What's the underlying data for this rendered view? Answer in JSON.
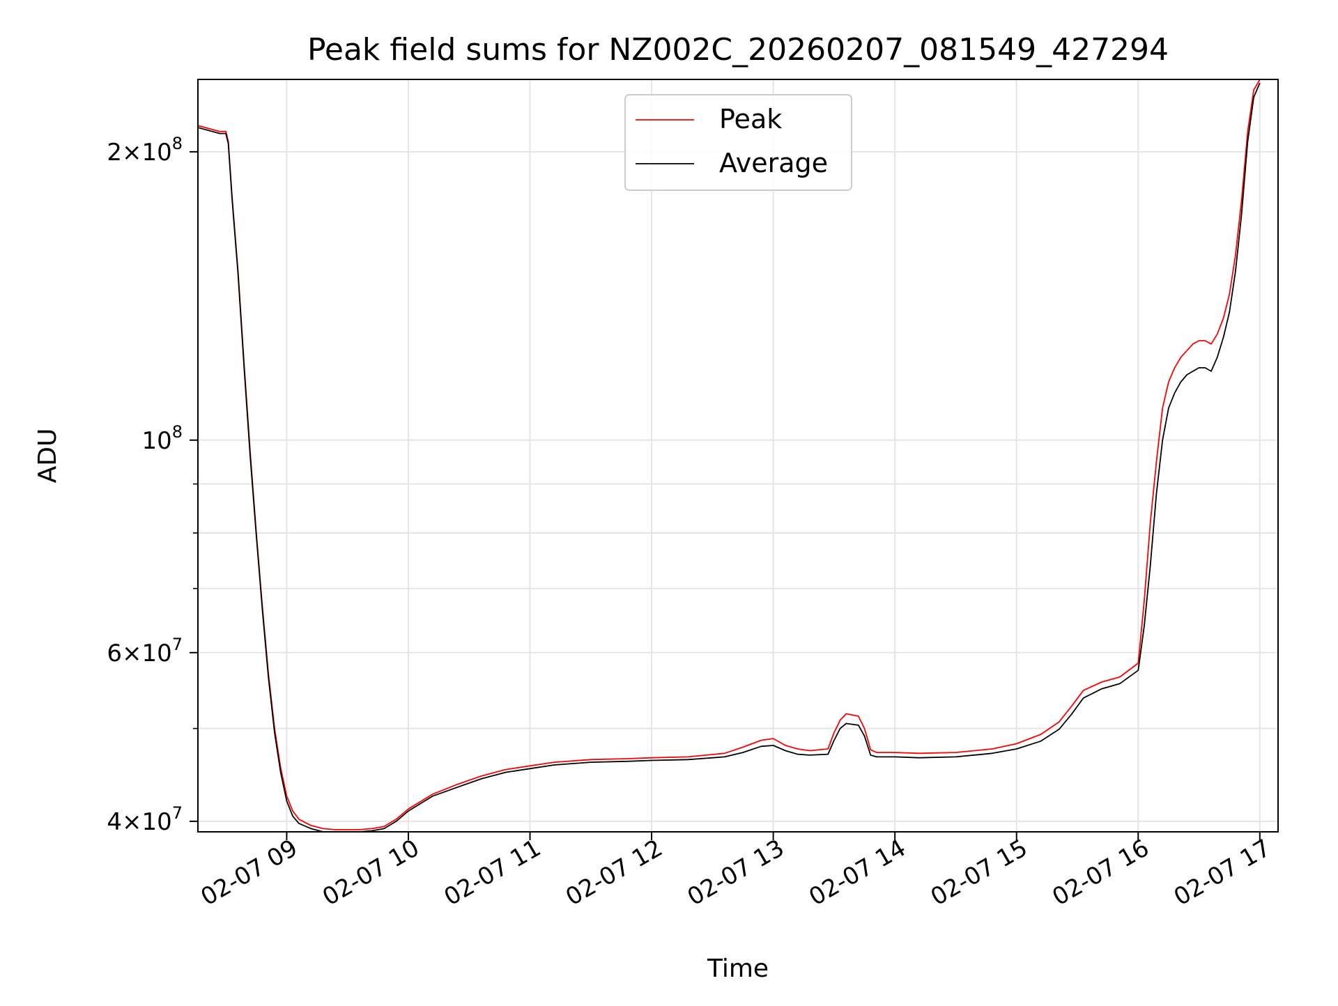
{
  "chart_data": {
    "type": "line",
    "title": "Peak field sums for NZ002C_20260207_081549_427294",
    "xlabel": "Time",
    "ylabel": "ADU",
    "yscale": "log",
    "xlim": [
      8.27,
      17.15
    ],
    "ylim": [
      39000000,
      238000000
    ],
    "grid": true,
    "legend_position": "top-center",
    "x_ticks": [
      {
        "value": 9,
        "label": "02-07 09"
      },
      {
        "value": 10,
        "label": "02-07 10"
      },
      {
        "value": 11,
        "label": "02-07 11"
      },
      {
        "value": 12,
        "label": "02-07 12"
      },
      {
        "value": 13,
        "label": "02-07 13"
      },
      {
        "value": 14,
        "label": "02-07 14"
      },
      {
        "value": 15,
        "label": "02-07 15"
      },
      {
        "value": 16,
        "label": "02-07 16"
      },
      {
        "value": 17,
        "label": "02-07 17"
      }
    ],
    "y_major_ticks": [
      {
        "value": 40000000,
        "mantissa": "4",
        "exp": "7"
      },
      {
        "value": 60000000,
        "mantissa": "6",
        "exp": "7"
      },
      {
        "value": 100000000,
        "mantissa": "",
        "exp": "8"
      },
      {
        "value": 200000000,
        "mantissa": "2",
        "exp": "8"
      }
    ],
    "y_minor_ticks": [
      50000000,
      70000000,
      80000000,
      90000000
    ],
    "series": [
      {
        "name": "Peak",
        "color": "#ff0000",
        "x": [
          8.27,
          8.45,
          8.5,
          8.52,
          8.55,
          8.6,
          8.65,
          8.7,
          8.75,
          8.8,
          8.85,
          8.9,
          8.95,
          9.0,
          9.05,
          9.1,
          9.2,
          9.3,
          9.4,
          9.5,
          9.6,
          9.7,
          9.8,
          9.9,
          10.0,
          10.2,
          10.4,
          10.6,
          10.8,
          11.0,
          11.2,
          11.5,
          11.8,
          12.0,
          12.3,
          12.6,
          12.75,
          12.9,
          13.0,
          13.1,
          13.2,
          13.3,
          13.45,
          13.5,
          13.55,
          13.6,
          13.7,
          13.75,
          13.8,
          13.85,
          14.0,
          14.2,
          14.5,
          14.8,
          15.0,
          15.2,
          15.35,
          15.45,
          15.55,
          15.7,
          15.85,
          16.0,
          16.05,
          16.1,
          16.15,
          16.2,
          16.25,
          16.3,
          16.35,
          16.4,
          16.45,
          16.5,
          16.55,
          16.6,
          16.65,
          16.7,
          16.75,
          16.8,
          16.85,
          16.9,
          16.95,
          17.0
        ],
        "y": [
          213000000,
          210000000,
          210000000,
          205000000,
          180000000,
          150000000,
          120000000,
          97000000,
          80000000,
          67000000,
          57000000,
          50000000,
          45500000,
          42500000,
          41000000,
          40200000,
          39600000,
          39300000,
          39200000,
          39200000,
          39200000,
          39300000,
          39500000,
          40200000,
          41200000,
          42700000,
          43700000,
          44600000,
          45300000,
          45700000,
          46100000,
          46400000,
          46500000,
          46600000,
          46700000,
          47100000,
          47800000,
          48600000,
          48800000,
          48000000,
          47600000,
          47400000,
          47600000,
          49500000,
          51000000,
          51800000,
          51500000,
          50000000,
          47500000,
          47200000,
          47200000,
          47100000,
          47200000,
          47600000,
          48200000,
          49300000,
          50800000,
          52700000,
          54800000,
          55900000,
          56600000,
          58500000,
          68000000,
          82000000,
          95000000,
          108000000,
          115000000,
          119000000,
          122000000,
          124000000,
          126000000,
          127000000,
          127000000,
          126000000,
          129000000,
          134000000,
          142000000,
          156000000,
          178000000,
          210000000,
          232000000,
          238000000
        ]
      },
      {
        "name": "Average",
        "color": "#000000",
        "x": [
          8.27,
          8.45,
          8.5,
          8.52,
          8.55,
          8.6,
          8.65,
          8.7,
          8.75,
          8.8,
          8.85,
          8.9,
          8.95,
          9.0,
          9.05,
          9.1,
          9.2,
          9.3,
          9.4,
          9.5,
          9.6,
          9.7,
          9.8,
          9.9,
          10.0,
          10.2,
          10.4,
          10.6,
          10.8,
          11.0,
          11.2,
          11.5,
          11.8,
          12.0,
          12.3,
          12.6,
          12.75,
          12.9,
          13.0,
          13.1,
          13.2,
          13.3,
          13.45,
          13.5,
          13.55,
          13.6,
          13.7,
          13.75,
          13.8,
          13.85,
          14.0,
          14.2,
          14.5,
          14.8,
          15.0,
          15.2,
          15.35,
          15.45,
          15.55,
          15.7,
          15.85,
          16.0,
          16.05,
          16.1,
          16.15,
          16.2,
          16.25,
          16.3,
          16.35,
          16.4,
          16.45,
          16.5,
          16.55,
          16.6,
          16.65,
          16.7,
          16.75,
          16.8,
          16.85,
          16.9,
          16.95,
          17.0
        ],
        "y": [
          212000000,
          209000000,
          209000000,
          204000000,
          179000000,
          149000000,
          119000000,
          96000000,
          79500000,
          66500000,
          56500000,
          49500000,
          45000000,
          42000000,
          40500000,
          39800000,
          39300000,
          39000000,
          39000000,
          39000000,
          39000000,
          39100000,
          39300000,
          40000000,
          41000000,
          42500000,
          43400000,
          44300000,
          45000000,
          45400000,
          45800000,
          46100000,
          46200000,
          46300000,
          46400000,
          46700000,
          47200000,
          47900000,
          48000000,
          47400000,
          47000000,
          46900000,
          47000000,
          48600000,
          50000000,
          50600000,
          50400000,
          49100000,
          46900000,
          46700000,
          46700000,
          46600000,
          46700000,
          47100000,
          47600000,
          48500000,
          49900000,
          51700000,
          53800000,
          55000000,
          55700000,
          57500000,
          64000000,
          74000000,
          88000000,
          100000000,
          108000000,
          112000000,
          115000000,
          117000000,
          118000000,
          119000000,
          119000000,
          118000000,
          122000000,
          128000000,
          136000000,
          150000000,
          172000000,
          205000000,
          228000000,
          236000000
        ]
      }
    ]
  }
}
